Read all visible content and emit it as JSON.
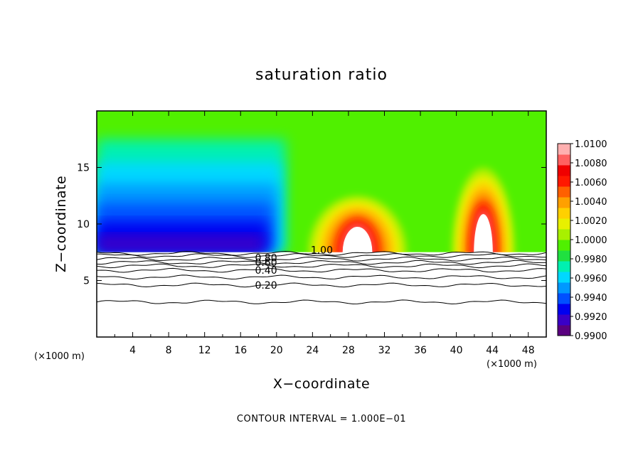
{
  "chart_data": {
    "type": "heatmap",
    "title": "saturation ratio",
    "xlabel": "X−coordinate",
    "ylabel": "Z−coordinate",
    "x_unit_label": "(×1000 m)",
    "y_unit_label": "(×1000 m)",
    "footnote": "CONTOUR INTERVAL = 1.000E−01",
    "xlim": [
      0,
      50
    ],
    "ylim": [
      0,
      20
    ],
    "x_ticks": [
      4,
      8,
      12,
      16,
      20,
      24,
      28,
      32,
      36,
      40,
      44,
      48
    ],
    "x_tick_labels": [
      "4",
      "8",
      "12",
      "16",
      "20",
      "24",
      "28",
      "32",
      "36",
      "40",
      "44",
      "48"
    ],
    "y_ticks": [
      5,
      10,
      15
    ],
    "y_tick_labels": [
      "5",
      "10",
      "15"
    ],
    "colorbar": {
      "min": 0.99,
      "max": 1.01,
      "labels": [
        "1.0100",
        "1.0080",
        "1.0060",
        "1.0040",
        "1.0020",
        "1.0000",
        "0.9980",
        "0.9960",
        "0.9940",
        "0.9920",
        "0.9900"
      ],
      "colors": [
        "#5a0080",
        "#3a00c8",
        "#0000f0",
        "#0050ff",
        "#0098ff",
        "#00d8ff",
        "#00f0b0",
        "#20e040",
        "#50f000",
        "#a8f000",
        "#e8f000",
        "#ffd000",
        "#ffa000",
        "#ff6000",
        "#ff1800",
        "#f00000",
        "#ff6060",
        "#ffb0b0"
      ]
    },
    "field": {
      "saturated_layer_base_z": 7.5,
      "blue_region_x": [
        0,
        21
      ],
      "warm_plumes": [
        {
          "x_center": 29,
          "half_width": 5.5,
          "top_z": 12.5
        },
        {
          "x_center": 43,
          "half_width": 3.5,
          "top_z": 15
        }
      ]
    },
    "contour_labels": [
      {
        "label": "1.00",
        "x": 23.8,
        "z": 7.7
      },
      {
        "label": "0.80",
        "x": 17.6,
        "z": 7.0
      },
      {
        "label": "0.60",
        "x": 17.6,
        "z": 6.6
      },
      {
        "label": "0.40",
        "x": 17.6,
        "z": 5.9
      },
      {
        "label": "0.20",
        "x": 17.6,
        "z": 4.6
      }
    ],
    "contour_lines_z": [
      3.1,
      4.6,
      5.3,
      5.9,
      6.3,
      6.6,
      6.9,
      7.2,
      7.4
    ]
  }
}
